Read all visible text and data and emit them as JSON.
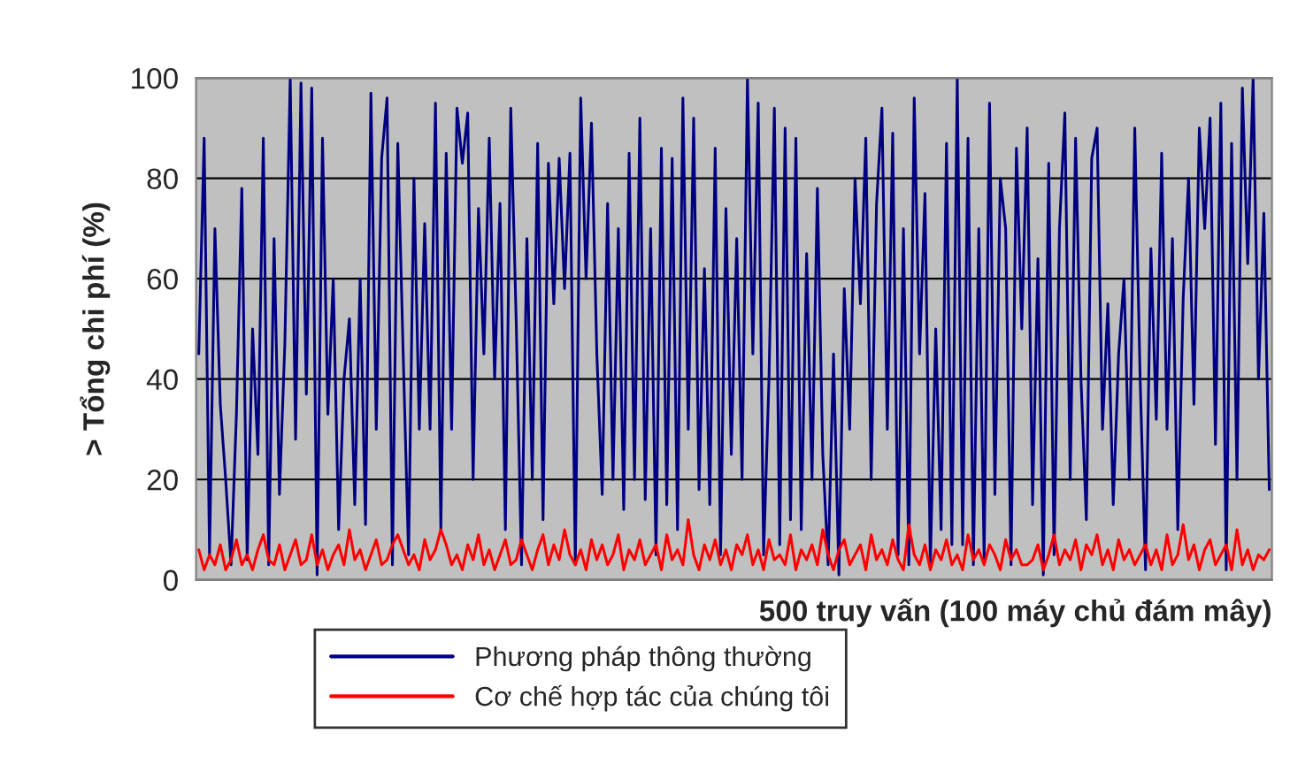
{
  "chart_data": {
    "type": "line",
    "xlabel": "500 truy vấn (100 máy chủ đám mây)",
    "ylabel": "> Tổng chi phí (%)",
    "categories": [
      null,
      null,
      null,
      null,
      null,
      null,
      null,
      null,
      null,
      null,
      null,
      null,
      null,
      null,
      null,
      null,
      null,
      null,
      null,
      null,
      null,
      null,
      null,
      null,
      null,
      null,
      null,
      null,
      null,
      null,
      null,
      null,
      null,
      null,
      null,
      null,
      null,
      null,
      null,
      null,
      null,
      null,
      null,
      null,
      null,
      null,
      null,
      null,
      null,
      null,
      null,
      null,
      null,
      null,
      null,
      null,
      null,
      null,
      null,
      null,
      null,
      null,
      null,
      null,
      null,
      null,
      null,
      null,
      null,
      null,
      null,
      null,
      null,
      null,
      null,
      null,
      null,
      null,
      null,
      null,
      null,
      null,
      null,
      null,
      null,
      null,
      null,
      null,
      null,
      null,
      null,
      null,
      null,
      null,
      null,
      null,
      null,
      null,
      null,
      null,
      null,
      null,
      null,
      null,
      null,
      null,
      null,
      null,
      null,
      null,
      null,
      null,
      null,
      null,
      null,
      null,
      null,
      null,
      null,
      null,
      null,
      null,
      null,
      null,
      null,
      null,
      null,
      null,
      null,
      null,
      null,
      null,
      null,
      null,
      null,
      null,
      null,
      null,
      null,
      null,
      null,
      null,
      null,
      null,
      null,
      null,
      null,
      null,
      null,
      null,
      null,
      null,
      null,
      null,
      null,
      null,
      null,
      null,
      null,
      null,
      null,
      null,
      null,
      null,
      null,
      null,
      null,
      null,
      null,
      null,
      null,
      null,
      null,
      null,
      null,
      null,
      null,
      null,
      null,
      null,
      null,
      null,
      null,
      null,
      null,
      null,
      null,
      null,
      null,
      null,
      null,
      null,
      null,
      null,
      null,
      null,
      null,
      null,
      null,
      null
    ],
    "series": [
      {
        "name": "Phương pháp thông thường",
        "color": "#000080",
        "values": [
          45,
          88,
          5,
          70,
          35,
          20,
          3,
          33,
          78,
          4,
          50,
          25,
          88,
          3,
          68,
          17,
          47,
          100,
          28,
          99,
          37,
          98,
          1,
          88,
          33,
          60,
          10,
          40,
          52,
          15,
          60,
          11,
          97,
          30,
          84,
          96,
          3,
          87,
          45,
          5,
          80,
          30,
          71,
          30,
          95,
          10,
          85,
          30,
          94,
          83,
          93,
          20,
          74,
          45,
          88,
          40,
          75,
          10,
          94,
          52,
          3,
          68,
          20,
          87,
          12,
          83,
          55,
          84,
          58,
          85,
          3,
          96,
          60,
          91,
          45,
          17,
          75,
          20,
          70,
          14,
          85,
          20,
          92,
          16,
          70,
          5,
          86,
          15,
          84,
          10,
          96,
          30,
          92,
          18,
          62,
          15,
          86,
          5,
          74,
          25,
          68,
          20,
          100,
          45,
          95,
          5,
          40,
          94,
          7,
          90,
          12,
          88,
          10,
          65,
          20,
          78,
          25,
          3,
          45,
          1,
          58,
          30,
          80,
          55,
          88,
          20,
          75,
          94,
          30,
          89,
          5,
          70,
          3,
          96,
          45,
          77,
          3,
          50,
          10,
          87,
          7,
          100,
          7,
          88,
          3,
          70,
          4,
          95,
          17,
          80,
          70,
          3,
          86,
          50,
          90,
          15,
          64,
          1,
          83,
          5,
          70,
          93,
          20,
          88,
          40,
          12,
          84,
          90,
          30,
          55,
          15,
          45,
          60,
          20,
          90,
          40,
          2,
          66,
          32,
          85,
          30,
          68,
          10,
          56,
          80,
          35,
          90,
          70,
          92,
          27,
          95,
          2,
          87,
          20,
          98,
          63,
          100,
          40,
          73,
          18
        ]
      },
      {
        "name": "Cơ chế hợp tác của chúng tôi",
        "color": "#ff0000",
        "values": [
          6,
          2,
          5,
          3,
          7,
          2,
          4,
          8,
          3,
          5,
          2,
          6,
          9,
          4,
          3,
          7,
          2,
          5,
          8,
          3,
          4,
          9,
          3,
          6,
          2,
          5,
          7,
          3,
          10,
          4,
          6,
          2,
          5,
          8,
          3,
          4,
          7,
          9,
          6,
          3,
          5,
          2,
          8,
          4,
          6,
          10,
          7,
          3,
          5,
          2,
          7,
          4,
          9,
          3,
          6,
          2,
          5,
          8,
          3,
          4,
          8,
          5,
          2,
          6,
          9,
          3,
          7,
          4,
          10,
          5,
          3,
          6,
          2,
          8,
          4,
          7,
          3,
          5,
          9,
          2,
          6,
          4,
          8,
          3,
          5,
          7,
          2,
          9,
          4,
          6,
          3,
          12,
          5,
          2,
          7,
          4,
          8,
          3,
          6,
          2,
          7,
          5,
          9,
          3,
          6,
          2,
          8,
          4,
          5,
          3,
          9,
          2,
          6,
          4,
          7,
          3,
          10,
          5,
          2,
          6,
          8,
          3,
          5,
          7,
          2,
          9,
          4,
          6,
          3,
          8,
          4,
          2,
          11,
          5,
          3,
          7,
          2,
          6,
          4,
          8,
          3,
          5,
          2,
          9,
          4,
          6,
          3,
          7,
          5,
          2,
          8,
          4,
          6,
          3,
          3,
          4,
          7,
          2,
          5,
          9,
          3,
          6,
          4,
          8,
          2,
          7,
          5,
          9,
          3,
          6,
          2,
          8,
          4,
          6,
          3,
          5,
          7,
          3,
          6,
          2,
          9,
          3,
          5,
          11,
          4,
          7,
          2,
          6,
          8,
          3,
          5,
          7,
          2,
          10,
          3,
          6,
          2,
          5,
          4,
          6
        ]
      }
    ],
    "ylim": [
      0,
      100
    ],
    "yticks": [
      0,
      20,
      40,
      60,
      80,
      100
    ],
    "grid": "y",
    "legend": "bottom",
    "line_style": "solid",
    "marker": "none"
  }
}
